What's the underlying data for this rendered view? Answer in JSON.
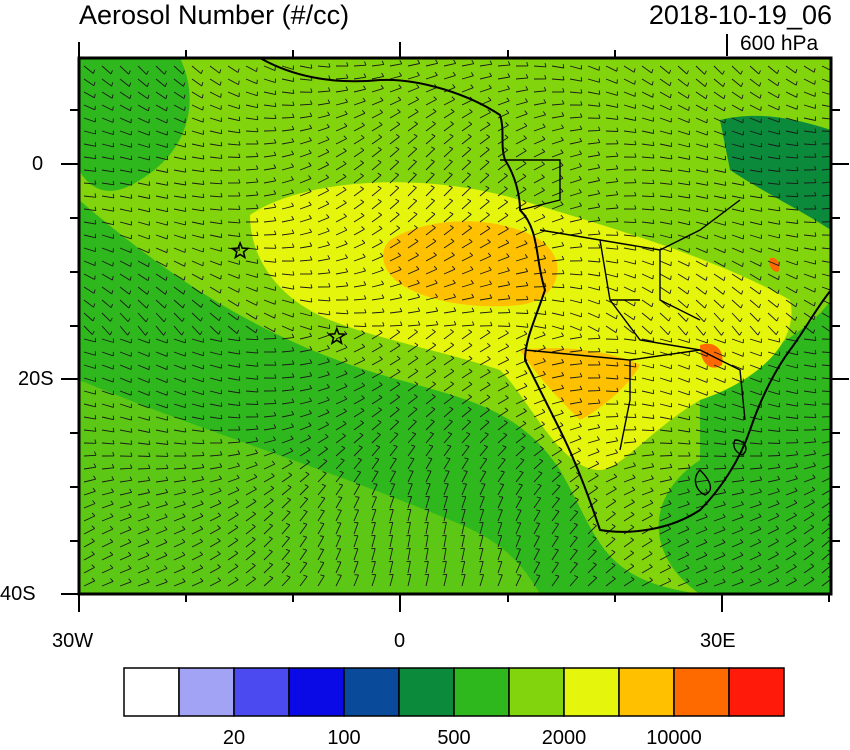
{
  "header": {
    "title": "Aerosol Number (#/cc)",
    "datetime": "2018-10-19_06",
    "level": "600 hPa"
  },
  "axes": {
    "lon_labels": [
      "30W",
      "0",
      "30E"
    ],
    "lat_labels": [
      "0",
      "20S",
      "40S"
    ]
  },
  "colorbar": {
    "colors": [
      "#ffffff",
      "#a3a3f5",
      "#4a4af0",
      "#0a0ae6",
      "#0a4a9a",
      "#0a8a3a",
      "#2fb81d",
      "#82d40c",
      "#e6f50c",
      "#ffc000",
      "#ff6a00",
      "#ff1a0a"
    ],
    "labels": [
      "20",
      "100",
      "500",
      "2000",
      "10000"
    ]
  },
  "markers": [
    {
      "name": "star-marker-1",
      "lon": -15,
      "lat": -8
    },
    {
      "name": "star-marker-2",
      "lon": -6,
      "lat": -16
    }
  ]
}
